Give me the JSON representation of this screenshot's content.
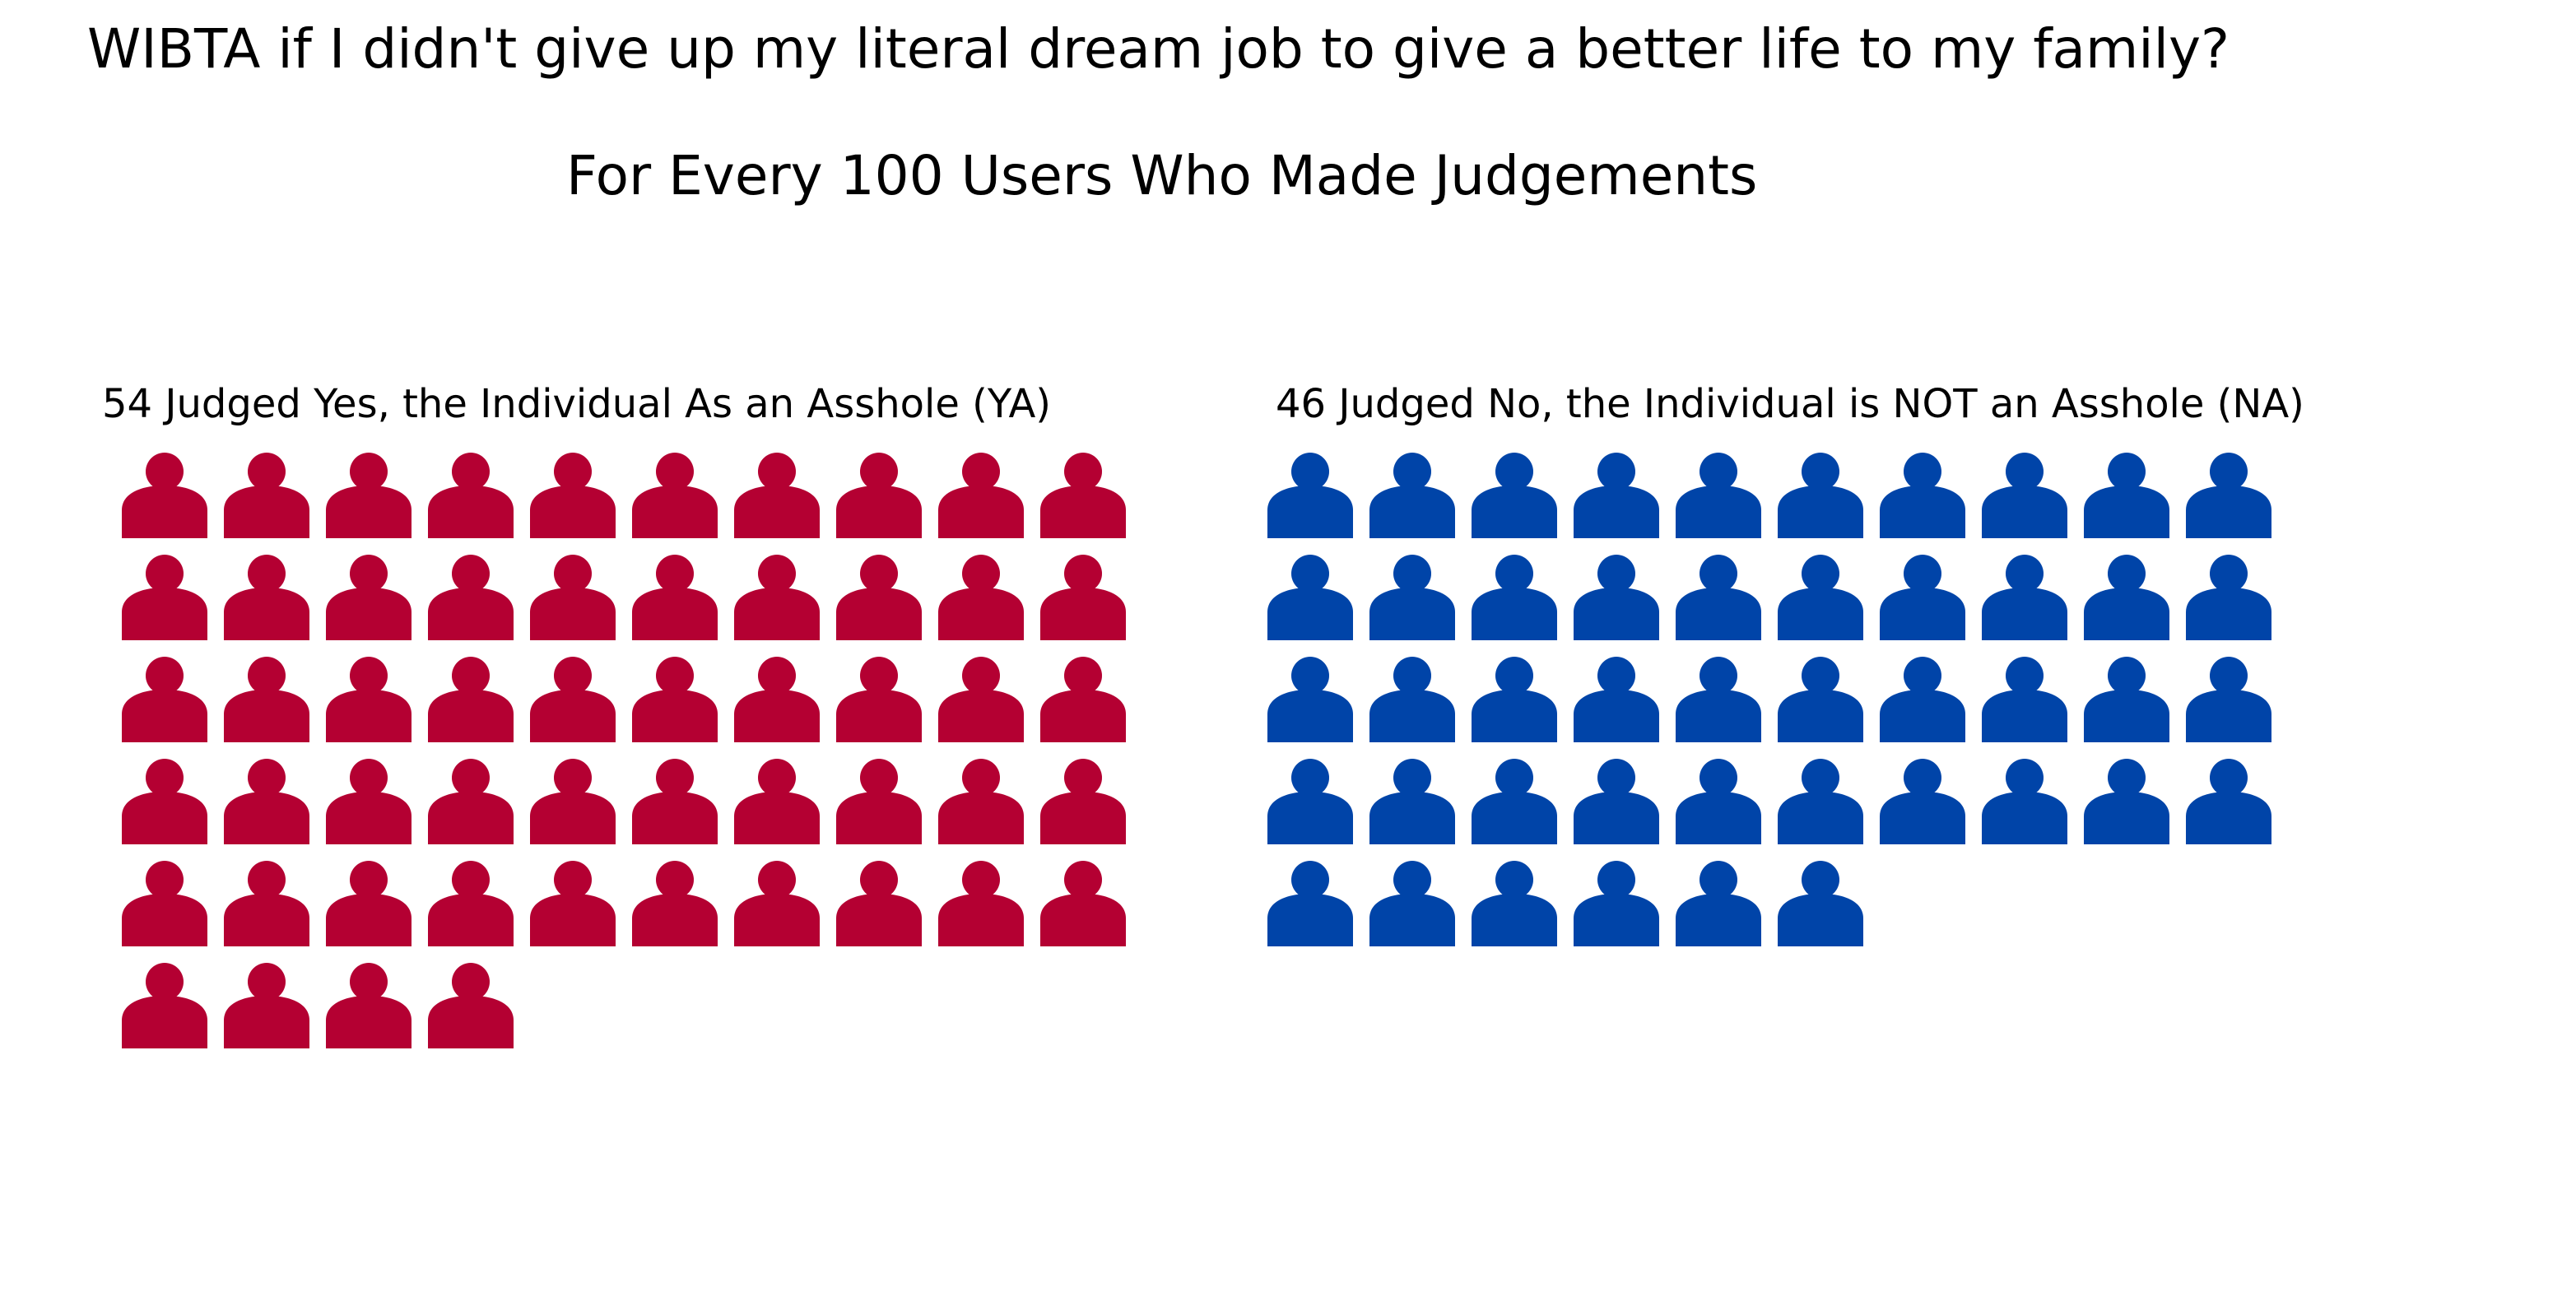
{
  "title": "WIBTA if I didn't give up my literal dream job to give a better life to my family?",
  "subtitle": "For Every 100 Users Who Made Judgements",
  "colors": {
    "ya": "#b40032",
    "na": "#0044a8"
  },
  "chart_data": {
    "type": "waffle",
    "icon": "person-icon",
    "columns": 10,
    "total": 100,
    "series": [
      {
        "key": "ya",
        "label": "54 Judged Yes, the Individual As an Asshole (YA)",
        "value": 54
      },
      {
        "key": "na",
        "label": "46 Judged No, the Individual is NOT an Asshole (NA)",
        "value": 46
      }
    ]
  }
}
